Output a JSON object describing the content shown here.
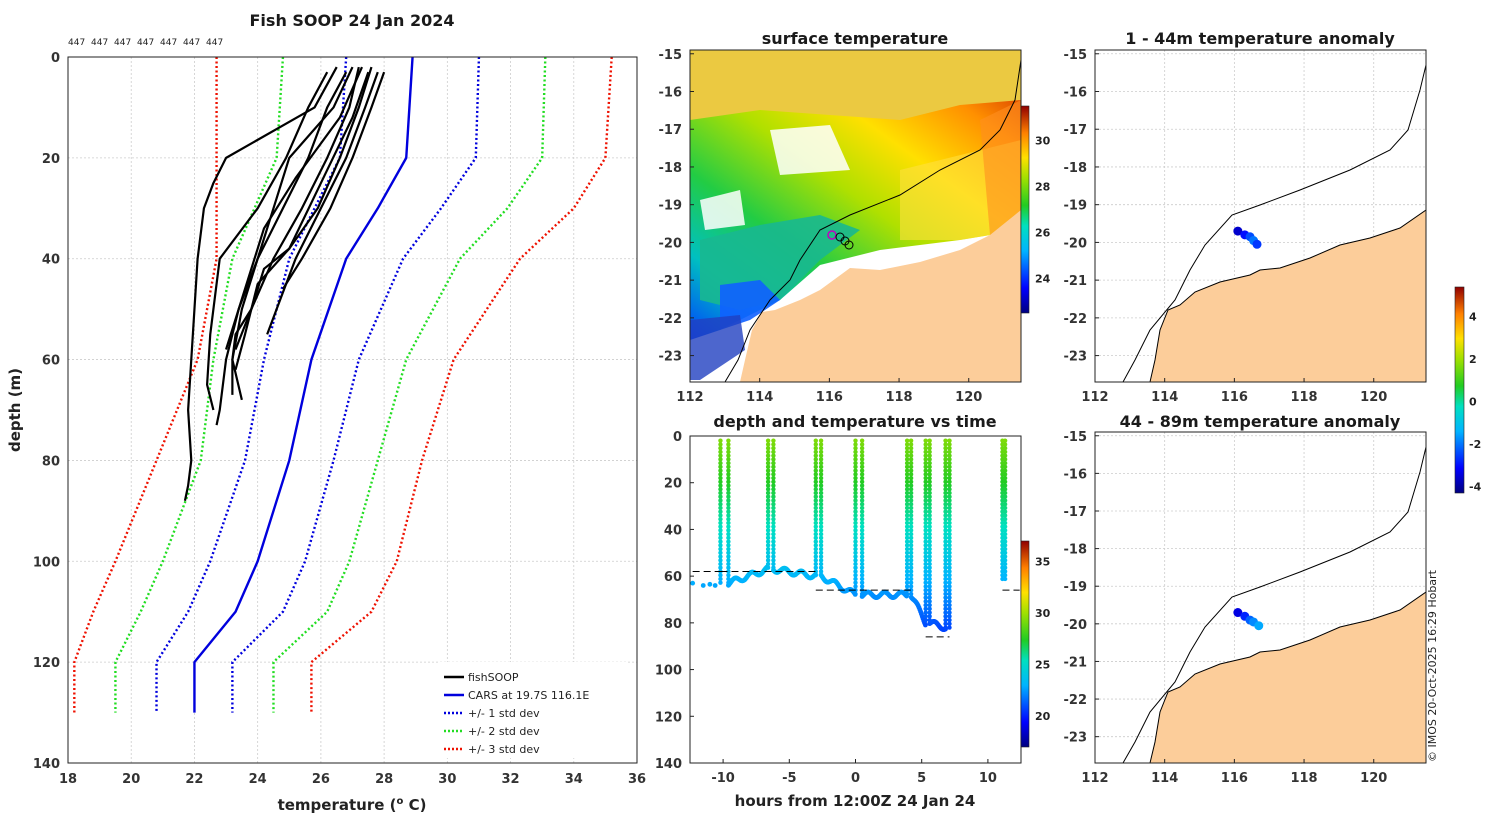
{
  "copyright": "© IMOS 20-Oct-2025 16:29 Hobart",
  "colors": {
    "profile": "#000000",
    "cars": "#0000dd",
    "std1": "#0000dd",
    "std2": "#22dd22",
    "std3": "#ee1100",
    "land": "#fccd9a",
    "coast": "#000000"
  },
  "chart_data": [
    {
      "id": "profile",
      "type": "line",
      "title": "Fish SOOP 24 Jan 2024",
      "id_labels": [
        "447",
        "447",
        "447",
        "447",
        "447",
        "447",
        "447"
      ],
      "xlabel": "temperature (",
      "xlabel_sup": "o",
      "xlabel_tail": " C)",
      "ylabel": "depth (m)",
      "xlim": [
        18,
        36
      ],
      "ylim": [
        0,
        140
      ],
      "xticks": [
        18,
        20,
        22,
        24,
        26,
        28,
        30,
        32,
        34,
        36
      ],
      "yticks": [
        0,
        20,
        40,
        60,
        80,
        100,
        120,
        140
      ],
      "legend": [
        "fishSOOP",
        "CARS at 19.7S 116.1E",
        "+/- 1 std dev",
        "+/- 2 std dev",
        "+/- 3 std dev"
      ],
      "legend_position": "bottom-right",
      "cars_depth": [
        0,
        20,
        30,
        40,
        60,
        80,
        100,
        110,
        120,
        130
      ],
      "cars_temp": [
        28.9,
        28.7,
        27.8,
        26.8,
        25.7,
        25.0,
        24.0,
        23.3,
        22.0,
        22.0
      ],
      "std1_lo": [
        26.8,
        26.6,
        25.8,
        25.0,
        24.2,
        23.6,
        22.5,
        21.8,
        20.8,
        20.8
      ],
      "std1_hi": [
        31.0,
        30.9,
        29.8,
        28.6,
        27.2,
        26.4,
        25.5,
        24.8,
        23.2,
        23.2
      ],
      "std2_lo": [
        24.8,
        24.6,
        23.9,
        23.2,
        22.6,
        22.2,
        21.0,
        20.3,
        19.5,
        19.5
      ],
      "std2_hi": [
        33.1,
        33.0,
        31.9,
        30.4,
        28.7,
        27.8,
        26.9,
        26.2,
        24.5,
        24.5
      ],
      "std3_lo": [
        22.7,
        22.7,
        22.7,
        22.7,
        22.1,
        20.8,
        19.5,
        18.8,
        18.2,
        18.2
      ],
      "std3_hi": [
        35.2,
        35.0,
        34.0,
        32.3,
        30.2,
        29.2,
        28.4,
        27.6,
        25.7,
        25.7
      ],
      "profiles": [
        {
          "depth": [
            2,
            10,
            20,
            25,
            30,
            40,
            50,
            60,
            70,
            80,
            85,
            88
          ],
          "temp": [
            26.5,
            25.8,
            23.0,
            22.6,
            22.3,
            22.1,
            22.0,
            21.9,
            21.8,
            21.9,
            21.8,
            21.7
          ]
        },
        {
          "depth": [
            3,
            10,
            20,
            30,
            40,
            50,
            55,
            65,
            70
          ],
          "temp": [
            26.2,
            25.6,
            24.9,
            24.0,
            22.8,
            22.6,
            22.5,
            22.4,
            22.6
          ]
        },
        {
          "depth": [
            2,
            10,
            20,
            30,
            40,
            50,
            60,
            70,
            73
          ],
          "temp": [
            27.0,
            26.4,
            25.0,
            24.5,
            24.0,
            23.4,
            23.0,
            22.8,
            22.7
          ]
        },
        {
          "depth": [
            3,
            10,
            20,
            30,
            40,
            50,
            60,
            67
          ],
          "temp": [
            26.8,
            26.2,
            25.6,
            24.8,
            24.0,
            23.5,
            23.2,
            23.2
          ]
        },
        {
          "depth": [
            2,
            10,
            20,
            30,
            40,
            50,
            55,
            60,
            68
          ],
          "temp": [
            27.2,
            26.9,
            26.2,
            25.4,
            24.5,
            23.8,
            23.3,
            23.2,
            23.5
          ]
        },
        {
          "depth": [
            3,
            12,
            25,
            38,
            45,
            55,
            62
          ],
          "temp": [
            27.5,
            27.0,
            26.0,
            25.0,
            24.0,
            23.6,
            23.3
          ]
        },
        {
          "depth": [
            2,
            10,
            20,
            30,
            38,
            42,
            50,
            58
          ],
          "temp": [
            27.6,
            27.2,
            26.6,
            25.9,
            25.0,
            24.2,
            23.8,
            23.3
          ]
        },
        {
          "depth": [
            3,
            10,
            20,
            30,
            40,
            50,
            55
          ],
          "temp": [
            27.8,
            27.4,
            26.8,
            26.0,
            25.2,
            24.6,
            24.3
          ]
        },
        {
          "depth": [
            2,
            12,
            24,
            34,
            44,
            52,
            58
          ],
          "temp": [
            27.3,
            26.6,
            25.2,
            24.2,
            23.7,
            23.3,
            23.0
          ]
        },
        {
          "depth": [
            3,
            10,
            20,
            30,
            40,
            46
          ],
          "temp": [
            28.0,
            27.6,
            27.0,
            26.3,
            25.4,
            24.8
          ]
        }
      ]
    },
    {
      "id": "sst_map",
      "type": "heatmap",
      "title": "surface temperature",
      "xlim": [
        112,
        121.5
      ],
      "ylim": [
        -23.7,
        -14.9
      ],
      "xticks": [
        112,
        114,
        116,
        118,
        120
      ],
      "yticks": [
        -15,
        -16,
        -17,
        -18,
        -19,
        -20,
        -21,
        -22,
        -23
      ],
      "colorbar": {
        "min": 22.5,
        "max": 31.5,
        "ticks": [
          24,
          26,
          28,
          30
        ]
      }
    },
    {
      "id": "time_series",
      "type": "scatter",
      "title": "depth and temperature vs time",
      "xlabel": "hours from 12:00Z 24 Jan 24",
      "xlim": [
        -12.5,
        12.5
      ],
      "ylim": [
        0,
        140
      ],
      "xticks": [
        -10,
        -5,
        0,
        5,
        10
      ],
      "yticks": [
        0,
        20,
        40,
        60,
        80,
        100,
        120,
        140
      ],
      "colorbar": {
        "min": 17,
        "max": 37,
        "ticks": [
          20,
          25,
          30,
          35
        ]
      },
      "casts": [
        {
          "t0": -10.2,
          "t1": -9.6,
          "depth": 63
        },
        {
          "t0": -6.6,
          "t1": -6.2,
          "depth": 57
        },
        {
          "t0": -3.0,
          "t1": -2.6,
          "depth": 60
        },
        {
          "t0": 0.0,
          "t1": 0.5,
          "depth": 68
        },
        {
          "t0": 3.9,
          "t1": 4.2,
          "depth": 68
        },
        {
          "t0": 5.3,
          "t1": 5.6,
          "depth": 80
        },
        {
          "t0": 6.8,
          "t1": 7.1,
          "depth": 82
        },
        {
          "t0": 11.1,
          "t1": 11.3,
          "depth": 62
        }
      ]
    },
    {
      "id": "anom_shallow",
      "type": "scatter",
      "title": "1 - 44m temperature anomaly",
      "xlim": [
        112,
        121.5
      ],
      "ylim": [
        -23.7,
        -14.9
      ],
      "xticks": [
        112,
        114,
        116,
        118,
        120
      ],
      "yticks": [
        -15,
        -16,
        -17,
        -18,
        -19,
        -20,
        -21,
        -22,
        -23
      ],
      "points": [
        {
          "lon": 116.1,
          "lat": -19.7,
          "anom": -3.6
        },
        {
          "lon": 116.3,
          "lat": -19.8,
          "anom": -3.0
        },
        {
          "lon": 116.45,
          "lat": -19.85,
          "anom": -2.4
        },
        {
          "lon": 116.55,
          "lat": -19.95,
          "anom": -2.0
        },
        {
          "lon": 116.65,
          "lat": -20.05,
          "anom": -2.6
        }
      ]
    },
    {
      "id": "anom_deep",
      "type": "scatter",
      "title": "44 - 89m temperature anomaly",
      "xlim": [
        112,
        121.5
      ],
      "ylim": [
        -23.7,
        -14.9
      ],
      "xticks": [
        112,
        114,
        116,
        118,
        120
      ],
      "yticks": [
        -15,
        -16,
        -17,
        -18,
        -19,
        -20,
        -21,
        -22,
        -23
      ],
      "points": [
        {
          "lon": 116.1,
          "lat": -19.7,
          "anom": -3.4
        },
        {
          "lon": 116.3,
          "lat": -19.8,
          "anom": -2.8
        },
        {
          "lon": 116.45,
          "lat": -19.9,
          "anom": -2.2
        },
        {
          "lon": 116.55,
          "lat": -19.95,
          "anom": -1.8
        },
        {
          "lon": 116.7,
          "lat": -20.05,
          "anom": -1.5
        }
      ],
      "colorbar": {
        "min": -4.3,
        "max": 5.4,
        "ticks": [
          -4,
          -2,
          0,
          2,
          4
        ]
      }
    }
  ]
}
